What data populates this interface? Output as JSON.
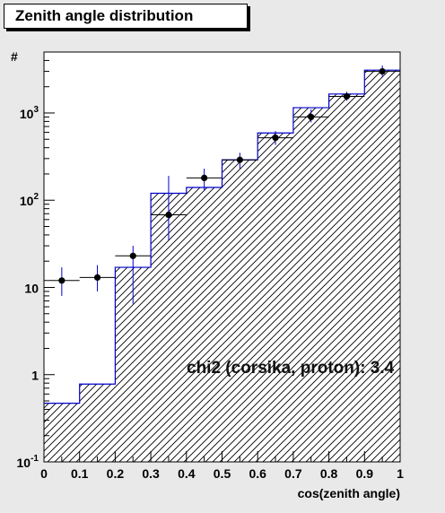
{
  "title": "Zenith angle distribution",
  "chart_data": {
    "type": "histogram",
    "title": "Zenith angle distribution",
    "xlabel": "cos(zenith angle)",
    "ylabel": "#",
    "xlim": [
      0,
      1
    ],
    "ylim": [
      0.1,
      5000
    ],
    "yscale": "log",
    "xticks": [
      "0",
      "0.1",
      "0.2",
      "0.3",
      "0.4",
      "0.5",
      "0.6",
      "0.7",
      "0.8",
      "0.9",
      "1"
    ],
    "yticks": [
      {
        "value": 0.1,
        "base": "10",
        "exp": "-1"
      },
      {
        "value": 1,
        "base": "1",
        "exp": ""
      },
      {
        "value": 10,
        "base": "10",
        "exp": ""
      },
      {
        "value": 100,
        "base": "10",
        "exp": "2"
      },
      {
        "value": 1000,
        "base": "10",
        "exp": "3"
      }
    ],
    "annotation": "chi2 (corsika, proton): 3.4",
    "histogram": {
      "bin_edges": [
        0,
        0.1,
        0.2,
        0.3,
        0.4,
        0.5,
        0.6,
        0.7,
        0.8,
        0.9,
        1.0
      ],
      "values": [
        0.47,
        0.78,
        17,
        120,
        140,
        290,
        590,
        1150,
        1650,
        3100
      ],
      "color": "#0000cc",
      "fill": "hatched"
    },
    "points": {
      "x": [
        0.05,
        0.15,
        0.25,
        0.35,
        0.45,
        0.55,
        0.65,
        0.75,
        0.85,
        0.95
      ],
      "y": [
        12,
        13,
        23,
        68,
        180,
        290,
        520,
        900,
        1550,
        3000
      ],
      "y_low": [
        8,
        9,
        6.5,
        35,
        130,
        230,
        430,
        780,
        1380,
        2600
      ],
      "y_high": [
        17,
        18,
        30,
        190,
        230,
        350,
        620,
        1100,
        1750,
        3500
      ],
      "color": "#000000"
    }
  }
}
